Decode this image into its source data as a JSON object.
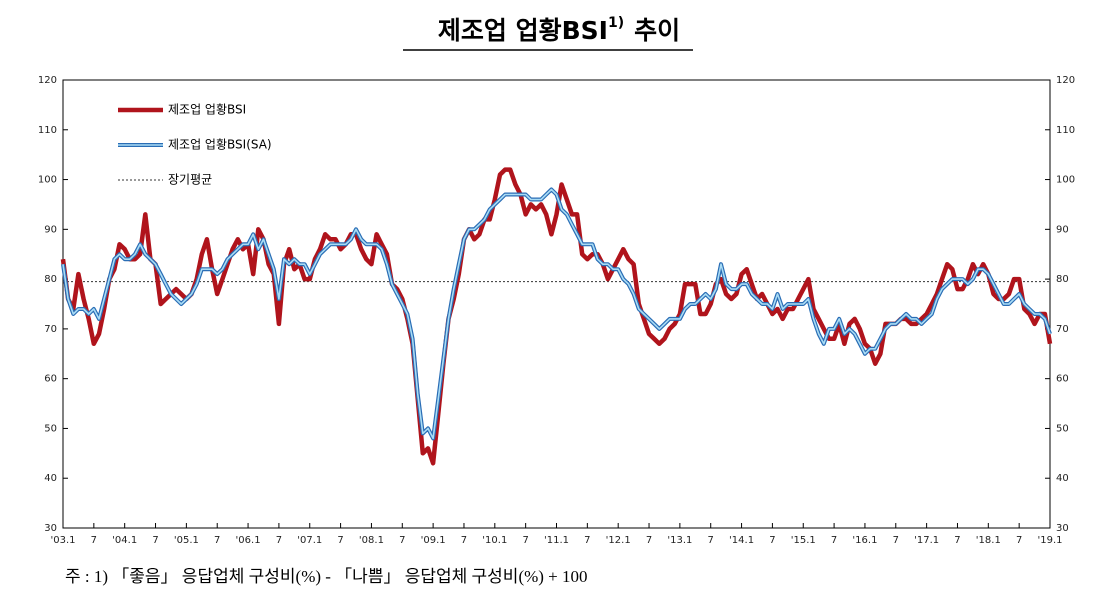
{
  "chart_data": {
    "type": "line",
    "title": "제조업 업황BSI",
    "title_sup": "1)",
    "title_suffix": "추이",
    "note": "주 : 1) 「좋음」 응답업체 구성비(%) - 「나쁨」 응답업체 구성비(%) + 100",
    "categories": [
      "'03.1",
      null,
      null,
      null,
      null,
      null,
      "7",
      null,
      null,
      null,
      null,
      null,
      "'04.1",
      null,
      null,
      null,
      null,
      null,
      "7",
      null,
      null,
      null,
      null,
      null,
      "'05.1",
      null,
      null,
      null,
      null,
      null,
      "7",
      null,
      null,
      null,
      null,
      null,
      "'06.1",
      null,
      null,
      null,
      null,
      null,
      "7",
      null,
      null,
      null,
      null,
      null,
      "'07.1",
      null,
      null,
      null,
      null,
      null,
      "7",
      null,
      null,
      null,
      null,
      null,
      "'08.1",
      null,
      null,
      null,
      null,
      null,
      "7",
      null,
      null,
      null,
      null,
      null,
      "'09.1",
      null,
      null,
      null,
      null,
      null,
      "7",
      null,
      null,
      null,
      null,
      null,
      "'10.1",
      null,
      null,
      null,
      null,
      null,
      "7",
      null,
      null,
      null,
      null,
      null,
      "'11.1",
      null,
      null,
      null,
      null,
      null,
      "7",
      null,
      null,
      null,
      null,
      null,
      "'12.1",
      null,
      null,
      null,
      null,
      null,
      "7",
      null,
      null,
      null,
      null,
      null,
      "'13.1",
      null,
      null,
      null,
      null,
      null,
      "7",
      null,
      null,
      null,
      null,
      null,
      "'14.1",
      null,
      null,
      null,
      null,
      null,
      "7",
      null,
      null,
      null,
      null,
      null,
      "'15.1",
      null,
      null,
      null,
      null,
      null,
      "7",
      null,
      null,
      null,
      null,
      null,
      "'16.1",
      null,
      null,
      null,
      null,
      null,
      "7",
      null,
      null,
      null,
      null,
      null,
      "'17.1",
      null,
      null,
      null,
      null,
      null,
      "7",
      null,
      null,
      null,
      null,
      null,
      "'18.1",
      null,
      null,
      null,
      null,
      null,
      "7",
      null,
      null,
      null,
      null,
      null,
      "'19.1"
    ],
    "series": [
      {
        "name": "제조업 업황BSI",
        "color": "#b0141c",
        "values": [
          84,
          76,
          74,
          81,
          76,
          72,
          67,
          69,
          74,
          80,
          82,
          87,
          86,
          84,
          84,
          85,
          93,
          84,
          83,
          75,
          76,
          77,
          78,
          77,
          76,
          77,
          80,
          85,
          88,
          82,
          77,
          80,
          83,
          86,
          88,
          86,
          87,
          81,
          90,
          88,
          83,
          81,
          71,
          83,
          86,
          82,
          83,
          80,
          80,
          84,
          86,
          89,
          88,
          88,
          86,
          87,
          89,
          89,
          86,
          84,
          83,
          89,
          87,
          85,
          79,
          78,
          76,
          72,
          67,
          56,
          45,
          46,
          43,
          53,
          63,
          72,
          76,
          81,
          88,
          90,
          88,
          89,
          92,
          92,
          96,
          101,
          102,
          102,
          99,
          97,
          93,
          95,
          94,
          95,
          93,
          89,
          93,
          99,
          96,
          93,
          93,
          85,
          84,
          85,
          85,
          83,
          80,
          82,
          84,
          86,
          84,
          83,
          75,
          72,
          69,
          68,
          67,
          68,
          70,
          71,
          73,
          79,
          79,
          79,
          73,
          73,
          75,
          79,
          80,
          77,
          76,
          77,
          81,
          82,
          79,
          76,
          77,
          75,
          73,
          74,
          72,
          74,
          74,
          76,
          78,
          80,
          74,
          72,
          70,
          68,
          68,
          71,
          67,
          71,
          72,
          70,
          67,
          66,
          63,
          65,
          71,
          71,
          71,
          72,
          72,
          71,
          71,
          72,
          73,
          75,
          77,
          80,
          83,
          82,
          78,
          78,
          80,
          83,
          81,
          83,
          81,
          77,
          76,
          76,
          77,
          80,
          80,
          74,
          73,
          71,
          73,
          73,
          67
        ]
      },
      {
        "name": "제조업 업황BSI(SA)",
        "color": "#2a6db5",
        "values": [
          83,
          76,
          73,
          74,
          74,
          73,
          74,
          72,
          76,
          80,
          84,
          85,
          84,
          84,
          85,
          87,
          85,
          84,
          83,
          81,
          79,
          77,
          76,
          75,
          76,
          77,
          79,
          82,
          82,
          82,
          81,
          82,
          84,
          85,
          86,
          87,
          87,
          89,
          86,
          88,
          85,
          82,
          76,
          84,
          83,
          84,
          83,
          83,
          81,
          83,
          85,
          86,
          87,
          87,
          87,
          87,
          88,
          90,
          88,
          87,
          87,
          87,
          86,
          83,
          79,
          77,
          75,
          73,
          68,
          57,
          49,
          50,
          48,
          56,
          64,
          72,
          78,
          83,
          88,
          90,
          90,
          91,
          92,
          94,
          95,
          96,
          97,
          97,
          97,
          97,
          97,
          96,
          96,
          96,
          97,
          98,
          97,
          94,
          93,
          91,
          89,
          87,
          87,
          87,
          84,
          83,
          83,
          82,
          82,
          80,
          79,
          77,
          74,
          73,
          72,
          71,
          70,
          71,
          72,
          72,
          72,
          74,
          75,
          75,
          76,
          77,
          76,
          78,
          83,
          79,
          78,
          78,
          79,
          79,
          77,
          76,
          75,
          75,
          74,
          77,
          74,
          75,
          75,
          75,
          75,
          76,
          72,
          69,
          67,
          70,
          70,
          72,
          69,
          70,
          69,
          67,
          65,
          66,
          66,
          68,
          70,
          71,
          71,
          72,
          73,
          72,
          72,
          71,
          72,
          73,
          76,
          78,
          79,
          80,
          80,
          80,
          79,
          80,
          82,
          82,
          81,
          79,
          77,
          75,
          75,
          76,
          77,
          75,
          74,
          73,
          73,
          72,
          69
        ]
      }
    ],
    "average": {
      "name": "장기평균",
      "value": 79.5
    },
    "ylim": [
      30,
      120
    ],
    "yticks": [
      30,
      40,
      50,
      60,
      70,
      80,
      90,
      100,
      110,
      120
    ],
    "legend": "upper left"
  }
}
